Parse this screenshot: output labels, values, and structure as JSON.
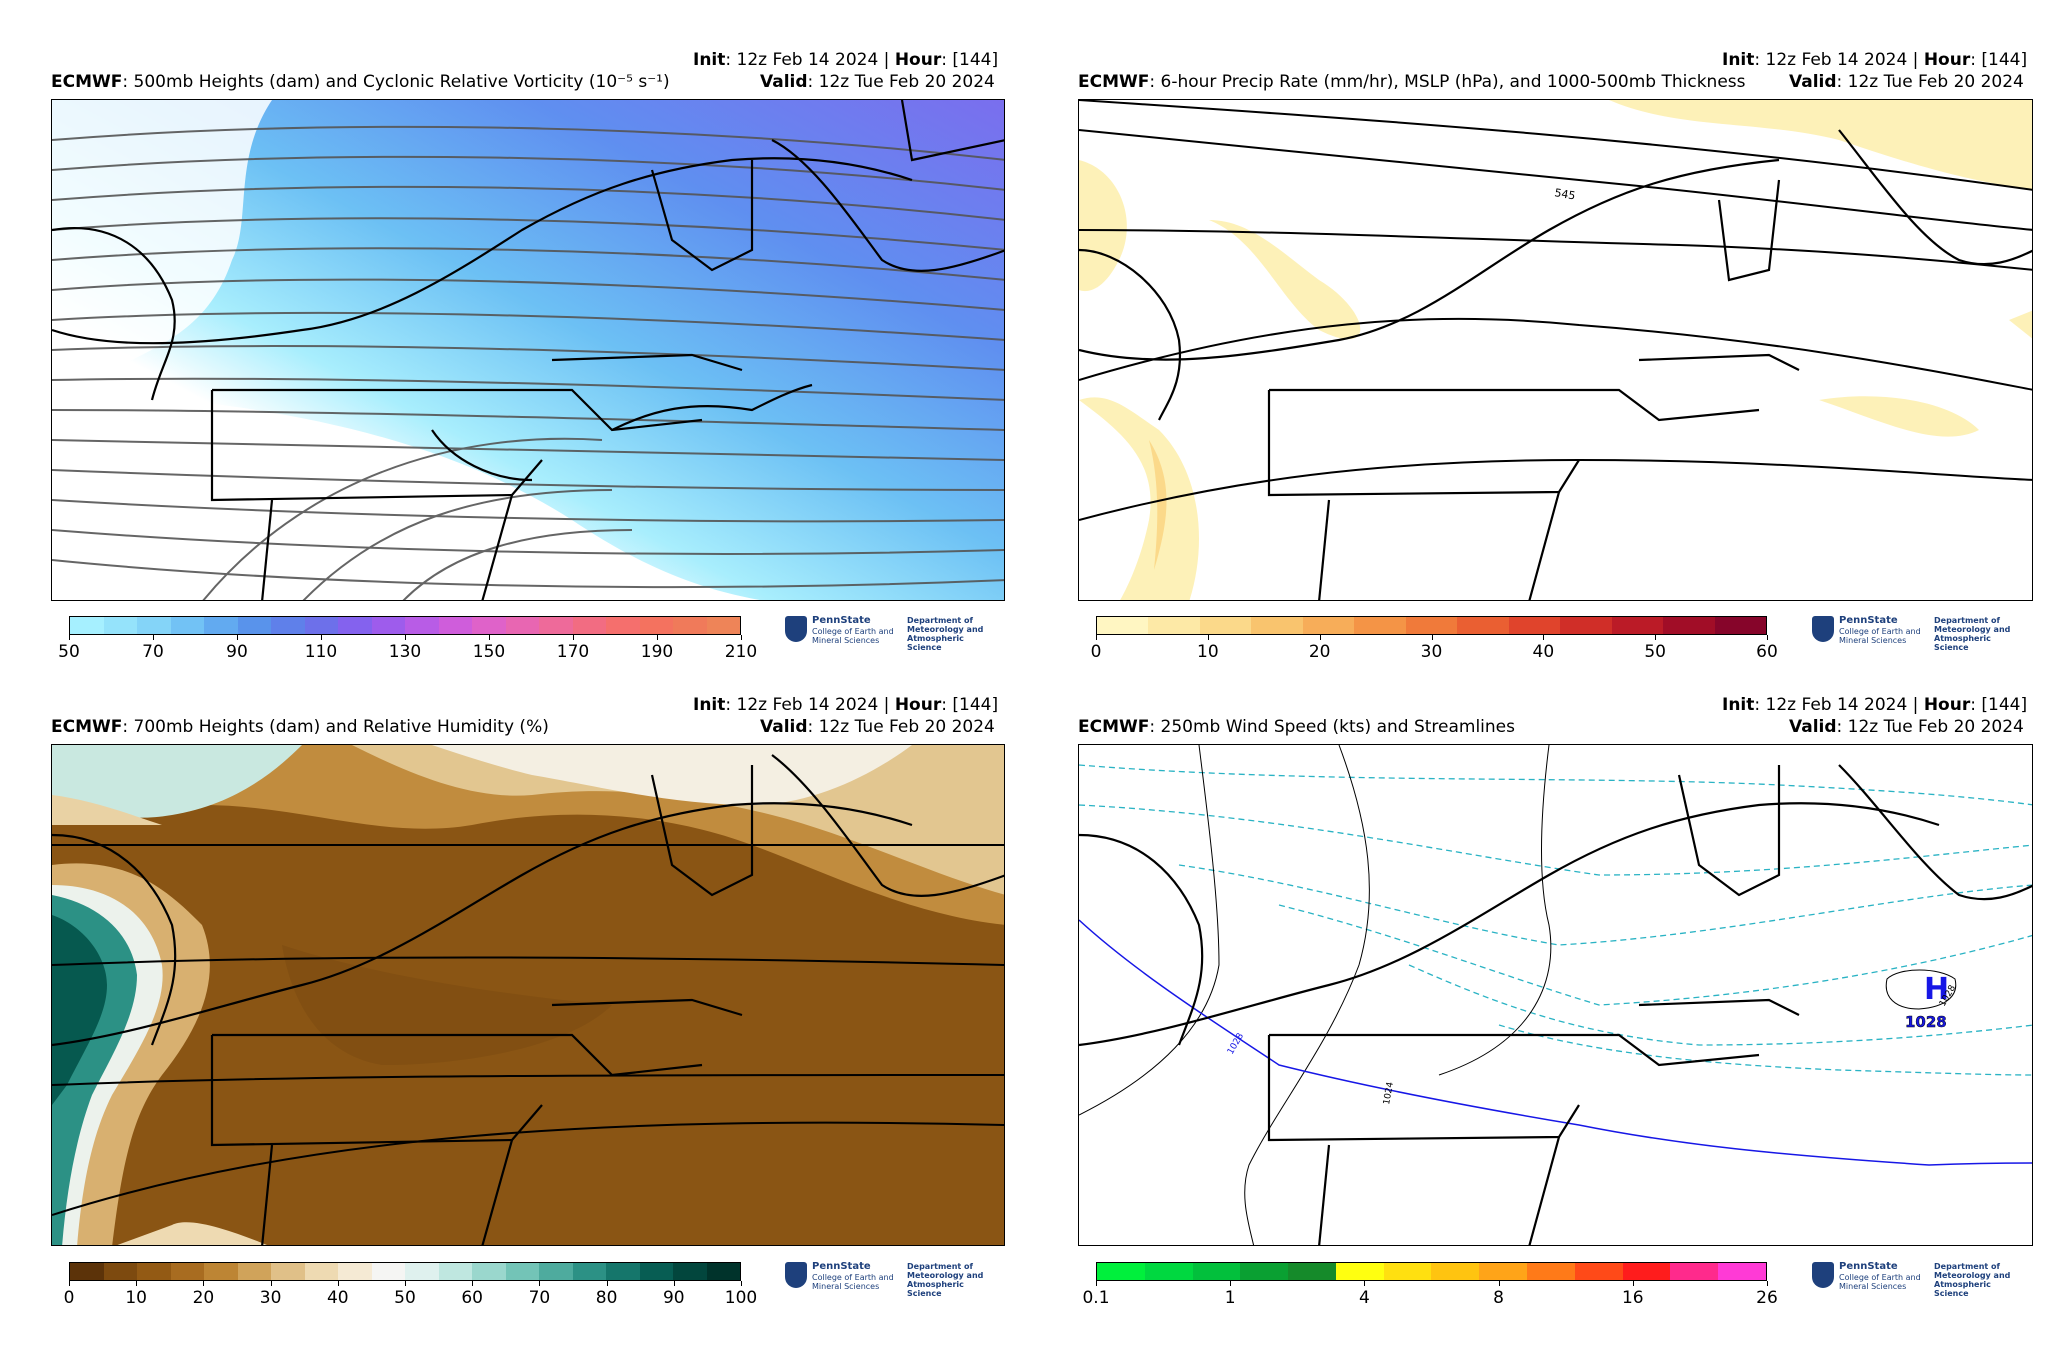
{
  "panels": [
    {
      "id": "vort",
      "init_label": "Init",
      "init_value": ": 12z Feb 14 2024 | ",
      "hour_label": "Hour",
      "hour_value": ": [144]",
      "model": "ECMWF",
      "title": ": 500mb Heights (dam) and Cyclonic Relative Vorticity (10⁻⁵ s⁻¹)",
      "valid_label": "Valid",
      "valid_value": ": 12z Tue Feb 20 2024",
      "colorbar": {
        "ticks": [
          "50",
          "70",
          "90",
          "110",
          "130",
          "150",
          "170",
          "190",
          "210"
        ],
        "colors": [
          "#a6f0ff",
          "#95e3fb",
          "#84d4f8",
          "#72c2f5",
          "#62aaf0",
          "#5993eb",
          "#5f80ea",
          "#6d70ea",
          "#8462ee",
          "#9e5cec",
          "#b85ce6",
          "#cf5ddb",
          "#df62c9",
          "#e866b2",
          "#ee6a9a",
          "#f26c82",
          "#f56f6d",
          "#f4725f",
          "#f07a5a",
          "#ee8458"
        ]
      }
    },
    {
      "id": "precip",
      "init_label": "Init",
      "init_value": ": 12z Feb 14 2024 | ",
      "hour_label": "Hour",
      "hour_value": ": [144]",
      "model": "ECMWF",
      "title": ": 6-hour Precip Rate (mm/hr), MSLP (hPa), and 1000-500mb Thickness",
      "valid_label": "Valid",
      "valid_value": ": 12z Tue Feb 20 2024",
      "contour_label": "545",
      "colorbar": {
        "ticks": [
          "0",
          "10",
          "20",
          "30",
          "40",
          "50",
          "60"
        ],
        "colors": [
          "#fff6c2",
          "#fde9a6",
          "#fbd98a",
          "#f9c46e",
          "#f7ad59",
          "#f49446",
          "#f07a3a",
          "#ea5f32",
          "#e0442c",
          "#d02e28",
          "#bb1b27",
          "#a10d27",
          "#86052a"
        ]
      }
    },
    {
      "id": "rh",
      "init_label": "Init",
      "init_value": ": 12z Feb 14 2024 | ",
      "hour_label": "Hour",
      "hour_value": ": [144]",
      "model": "ECMWF",
      "title": ": 700mb Heights (dam) and Relative Humidity (%)",
      "valid_label": "Valid",
      "valid_value": ": 12z Tue Feb 20 2024",
      "colorbar": {
        "ticks": [
          "0",
          "10",
          "20",
          "30",
          "40",
          "50",
          "60",
          "70",
          "80",
          "90",
          "100"
        ],
        "colors": [
          "#5c3309",
          "#7d4a0f",
          "#935a14",
          "#a86c20",
          "#bd8534",
          "#d0a35a",
          "#e0c088",
          "#eedab2",
          "#f5ead4",
          "#f5f5f3",
          "#dff1ee",
          "#bfe7e0",
          "#9ad7cd",
          "#73c4b7",
          "#4eab9e",
          "#2c9185",
          "#15766b",
          "#075d53",
          "#02463d",
          "#00332b"
        ]
      }
    },
    {
      "id": "wind250",
      "init_label": "Init",
      "init_value": ": 12z Feb 14 2024 | ",
      "hour_label": "Hour",
      "hour_value": ": [144]",
      "model": "ECMWF",
      "title": ": 250mb Wind Speed (kts) and Streamlines",
      "valid_label": "Valid",
      "valid_value": ": 12z Tue Feb 20 2024",
      "high_letter": "H",
      "high_value": "1028",
      "contour_labels": [
        "1028",
        "1024",
        "1028"
      ],
      "colorbar": {
        "ticks": [
          "0.1",
          "1",
          "4",
          "8",
          "16",
          "26"
        ],
        "colors": [
          "#00f03c",
          "#00d840",
          "#02c03c",
          "#0aa032",
          "#158a2a",
          "#ffff10",
          "#ffe010",
          "#ffc410",
          "#ffa418",
          "#ff7a18",
          "#ff4a18",
          "#ff1c1c",
          "#ff2a8c",
          "#ff3ad6"
        ]
      }
    }
  ],
  "logo": {
    "name": "PennState",
    "line2": "College of Earth and Mineral Sciences",
    "dept": "Department of Meteorology and Atmospheric Science"
  }
}
